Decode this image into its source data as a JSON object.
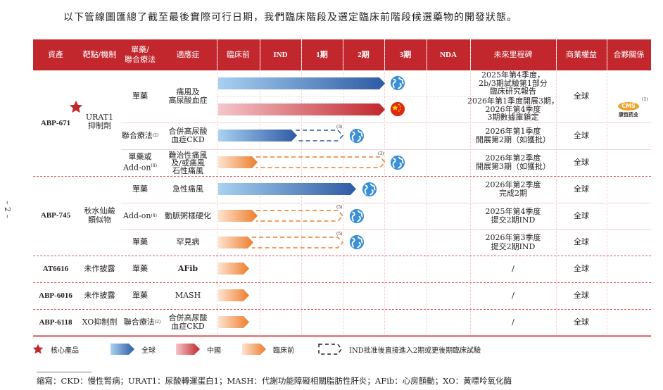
{
  "title": "以下管線圖匯總了截至最後實際可行日期，我們臨床階段及選定臨床前階段候選藥物的開發狀態。",
  "page_number": "– 2 –",
  "header": {
    "asset": "資產",
    "target": "靶點/機制",
    "therapy_1": "單藥/",
    "therapy_2": "聯合療法",
    "indication": "適應症",
    "preclinical": "臨床前",
    "ind": "IND",
    "p1": "1期",
    "p2": "2期",
    "p3": "3期",
    "nda": "NDA",
    "milestone": "未來里程碑",
    "rights": "商業權益",
    "partner": "合夥關係"
  },
  "rows": {
    "abp671": {
      "asset": "ABP-671",
      "target_1": "URAT1",
      "target_2": "抑制劑",
      "r1": {
        "therapy": "單藥",
        "ind_1": "痛風及",
        "ind_2": "高尿酸血症",
        "ms_a1": "2025年第4季度，",
        "ms_a2": "2b/3期試驗第1部分",
        "ms_a3": "臨床研究報告",
        "ms_b1": "2026年第1季度開展3期，",
        "ms_b2": "2026年第4季度",
        "ms_b3": "3期數據庫鎖定",
        "rights": "全球",
        "partner": "康哲药业",
        "partner_logo": "CMS",
        "partner_sup": "(1)"
      },
      "r2": {
        "therapy": "聯合療法",
        "sup": "(2)",
        "ind_1": "合併高尿酸",
        "ind_2": "血症CKD",
        "note": "(3)",
        "ms_1": "2026年第1季度",
        "ms_2": "開展第2期（如獲批）",
        "rights": "全球"
      },
      "r3": {
        "therapy_1": "單藥或",
        "therapy_2": "Add-on",
        "sup": "(4)",
        "ind_1": "難治性痛風",
        "ind_2": "及/或痛風",
        "ind_3": "石性痛風",
        "note": "(3)",
        "ms_1": "2026年第2季度",
        "ms_2": "開展第3期（如獲批）",
        "rights": "全球"
      }
    },
    "abp745": {
      "asset": "ABP-745",
      "target_1": "秋水仙鹼",
      "target_2": "類似物",
      "r1": {
        "therapy": "單藥",
        "ind": "急性痛風",
        "ms_1": "2026年第2季度",
        "ms_2": "完成2期",
        "rights": "全球"
      },
      "r2": {
        "therapy": "Add-on",
        "sup": "(4)",
        "ind": "動脈粥樣硬化",
        "note": "(5)",
        "ms_1": "2025年第4季度",
        "ms_2": "提交2期IND",
        "rights": "全球"
      },
      "r3": {
        "therapy": "單藥",
        "ind": "罕見病",
        "note": "(5)",
        "ms_1": "2026年第3季度",
        "ms_2": "提交2期IND",
        "rights": "全球"
      }
    },
    "at6616": {
      "asset": "AT6616",
      "target": "未作披露",
      "therapy": "單藥",
      "ind": "AFib",
      "ms": "/",
      "rights": "全球"
    },
    "abp6016": {
      "asset": "ABP-6016",
      "target": "未作披露",
      "therapy": "單藥",
      "ind": "MASH",
      "ms": "/",
      "rights": "全球"
    },
    "abp6118": {
      "asset": "ABP-6118",
      "target": "XO抑制劑",
      "therapy": "聯合療法",
      "sup": "(2)",
      "ind_1": "合併高尿酸",
      "ind_2": "血症CKD",
      "ms": "/",
      "rights": "全球"
    }
  },
  "legend": {
    "core": "核心產品",
    "global": "全球",
    "china": "中國",
    "preclinical": "臨床前",
    "ind_direct": "IND批准後直接進入2期或更後期臨床試驗"
  },
  "footnote": "縮寫：CKD：慢性腎病；URAT1：尿酸轉運蛋白1；MASH：代謝功能障礙相關脂肪性肝炎；AFib：心房顫動；XO：黃嘌呤氧化酶",
  "colors": {
    "header": "#c1272d",
    "global": "#2d5aa5",
    "china": "#c1272d",
    "preclinical": "#ee7d2c"
  }
}
